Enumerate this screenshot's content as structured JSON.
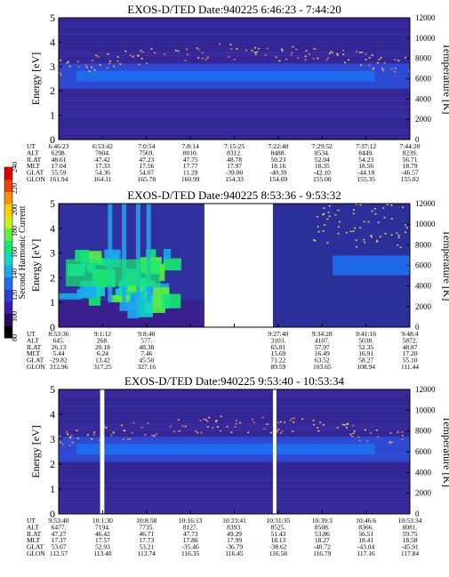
{
  "colorbar": {
    "label": "Second Harmonic Current",
    "ticks": [
      "240",
      "220",
      "200",
      "180",
      "160",
      "140",
      "120",
      "100",
      "80"
    ],
    "colors": [
      "#000000",
      "#2a0d5e",
      "#3b1fa8",
      "#2e3fd8",
      "#1e6ff0",
      "#1ea8f0",
      "#10d8c8",
      "#18e870",
      "#60f040",
      "#c8f020",
      "#f8d000",
      "#f89000",
      "#f04000",
      "#e00000"
    ]
  },
  "panels": [
    {
      "title": "EXOS-D/TED   Date:940225  6:46:23 - 7:44:20",
      "gaps": [],
      "ephem_labels": [
        "UT",
        "ALT",
        "ILAT",
        "MLT",
        "GLAT",
        "GLON"
      ],
      "ephem_cols": [
        [
          "6:46:23",
          "6298.",
          "48.61",
          "17.04",
          "55.59",
          "161.94"
        ],
        [
          "6:53:42",
          "7004.",
          "47.42",
          "17.33",
          "54.36",
          "164.11"
        ],
        [
          "7:0:54",
          "7569.",
          "47.23",
          "17.56",
          "54.07",
          "165.78"
        ],
        [
          "7:8:14",
          "8010.",
          "47.75",
          "17.77",
          "11.29",
          "160.99"
        ],
        [
          "7:15:25",
          "8312.",
          "48.78",
          "17.97",
          "-39.00",
          "154.33"
        ],
        [
          "7:22:40",
          "8488.",
          "50.23",
          "18.16",
          "-40.39",
          "154.69"
        ],
        [
          "7:29:52",
          "8534.",
          "52.04",
          "18.35",
          "-42.10",
          "155.00"
        ],
        [
          "7:37:12",
          "8449.",
          "54.23",
          "18.56",
          "-44.18",
          "155.35"
        ],
        [
          "7:44:20",
          "8239.",
          "56.71",
          "18.79",
          "-46.57",
          "155.82"
        ]
      ]
    },
    {
      "title": "EXOS-D/TED   Date:940225  8:53:36 - 9:53:32",
      "gaps": [
        [
          0.415,
          0.61
        ]
      ],
      "ephem_labels": [
        "UT",
        "ALT",
        "ILAT",
        "MLT",
        "GLAT",
        "GLON"
      ],
      "ephem_cols": [
        [
          "8:53:36",
          "645.",
          "26.13",
          "5.44",
          "-29.82",
          "312.96"
        ],
        [
          "9:1:12",
          "268.",
          "20.18",
          "6.24",
          "13.42",
          "317.25"
        ],
        [
          "9:8:40",
          "577.",
          "48.38",
          "7.46",
          "45.50",
          "327.16"
        ],
        [
          "",
          "",
          "",
          "",
          "",
          ""
        ],
        [
          "",
          "",
          "",
          "",
          "",
          ""
        ],
        [
          "9:27:40",
          "3103.",
          "65.81",
          "15.69",
          "71.22",
          "89.59"
        ],
        [
          "9:34:28",
          "4107.",
          "57.97",
          "16.49",
          "63.52",
          "103.65"
        ],
        [
          "9:41:16",
          "5038.",
          "52.35",
          "16.91",
          "58.27",
          "108.94"
        ],
        [
          "9:48:4",
          "5872.",
          "48.87",
          "17.20",
          "55.10",
          "111.44"
        ]
      ]
    },
    {
      "title": "EXOS-D/TED   Date:940225  9:53:40 - 10:53:34",
      "gaps": [
        [
          0.118,
          0.13
        ],
        [
          0.61,
          0.62
        ]
      ],
      "ephem_labels": [
        "UT",
        "ALT",
        "ILAT",
        "MLT",
        "GLAT",
        "GLON"
      ],
      "ephem_cols": [
        [
          "9:53:40",
          "6477.",
          "47.27",
          "17.37",
          "53.67",
          "112.57"
        ],
        [
          "10:1:30",
          "7194.",
          "46.42",
          "17.57",
          "52.93",
          "113.40"
        ],
        [
          "10:8:58",
          "7735.",
          "46.71",
          "17.73",
          "53.21",
          "113.74"
        ],
        [
          "10:16:13",
          "8127.",
          "47.73",
          "17.86",
          "-35.46",
          "116.35"
        ],
        [
          "10:23:41",
          "8393.",
          "49.29",
          "17.99",
          "-36.79",
          "116.45"
        ],
        [
          "10:31:35",
          "8525.",
          "51.43",
          "18.13",
          "-38.62",
          "116.58"
        ],
        [
          "10:39:3",
          "8508.",
          "53.86",
          "18.27",
          "-40.72",
          "116.79"
        ],
        [
          "10:46:6",
          "8366.",
          "56.51",
          "18.41",
          "-43.04",
          "117.16"
        ],
        [
          "10:53:34",
          "8081.",
          "59.75",
          "18.58",
          "-45.91",
          "117.84"
        ]
      ]
    }
  ],
  "chart_data": {
    "type": "heatmap",
    "yaxis_left": {
      "label": "Energy [eV]",
      "ticks": [
        0,
        1,
        2,
        3,
        4,
        5
      ],
      "ylim": [
        0,
        5
      ]
    },
    "yaxis_right": {
      "label": "Temperature [K]",
      "ticks": [
        0,
        2000,
        4000,
        6000,
        8000,
        10000,
        12000
      ],
      "ylim": [
        0,
        12000
      ]
    },
    "colorbar_range": [
      80,
      240
    ],
    "ytick_labels": [
      "0",
      "1",
      "2",
      "3",
      "4",
      "5"
    ],
    "rtick_labels": [
      "0",
      "2000",
      "4000",
      "6000",
      "8000",
      "10000",
      "12000"
    ]
  }
}
